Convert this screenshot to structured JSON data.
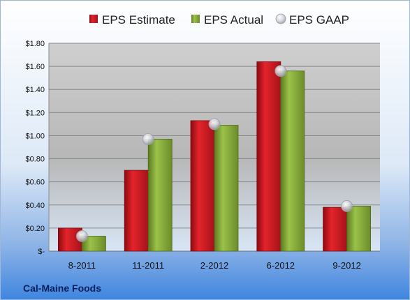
{
  "chart_data": {
    "type": "bar",
    "categories": [
      "8-2011",
      "11-2011",
      "2-2012",
      "6-2012",
      "9-2012"
    ],
    "series": [
      {
        "name": "EPS Estimate",
        "values": [
          0.2,
          0.7,
          1.13,
          1.64,
          0.38
        ],
        "color": "#c0141b"
      },
      {
        "name": "EPS Actual",
        "values": [
          0.13,
          0.97,
          1.09,
          1.56,
          0.39
        ],
        "color": "#7fa035"
      }
    ],
    "markers": {
      "name": "EPS GAAP",
      "values": [
        0.13,
        0.97,
        1.1,
        1.56,
        0.39
      ],
      "color": "#c8ccd4"
    },
    "ylim": [
      0,
      1.8
    ],
    "yticks": [
      "$-",
      "$0.20",
      "$0.40",
      "$0.60",
      "$0.80",
      "$1.00",
      "$1.20",
      "$1.40",
      "$1.60",
      "$1.80"
    ],
    "grid": true,
    "legend": "top",
    "footer": "Cal-Maine Foods"
  }
}
